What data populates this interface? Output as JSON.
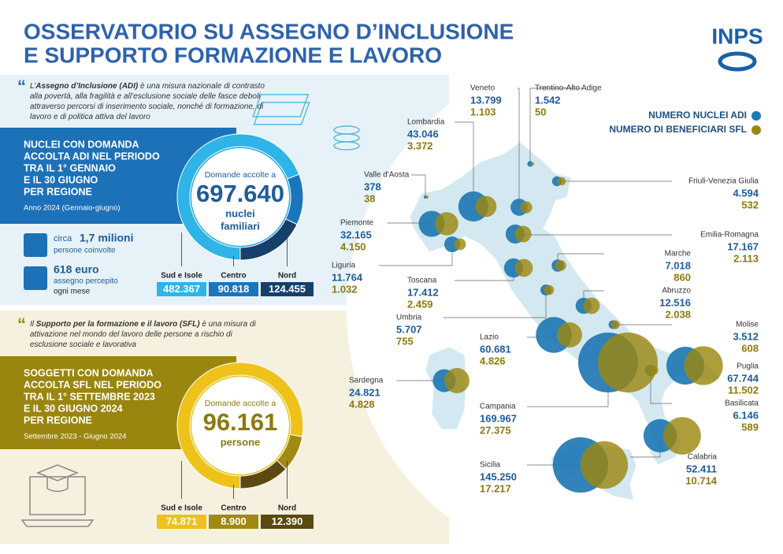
{
  "header": {
    "title": [
      "OSSERVATORIO SU ASSEGNO D’INCLUSIONE",
      "E SUPPORTO FORMAZIONE E LAVORO"
    ],
    "logo": "INPS"
  },
  "adi": {
    "intro": [
      "L’",
      "Assegno d’Inclusione (ADI)",
      " è una misura nazionale di contrasto alla povertà, alla fragilità e all’esclusione sociale delle fasce deboli attraverso percorsi di inserimento sociale, nonché di formazione, di lavoro e di politica attiva del lavoro"
    ],
    "heading": [
      "NUCLEI CON DOMANDA",
      "ACCOLTA ADI NEL PERIODO",
      "TRA IL 1° GENNAIO",
      "E IL 30 GIUGNO",
      "PER REGIONE"
    ],
    "period": "Anno 2024 (Gennaio-giugno)",
    "circle_caption": "Domande accolte a",
    "total": {
      "value": 697640,
      "label": "697.640"
    },
    "unit": [
      "nuclei",
      "familiari"
    ],
    "facts": [
      [
        "circa",
        "1,7 milioni",
        "persone coinvolte"
      ],
      [
        "618 euro",
        "assegno percepito",
        "ogni mese"
      ]
    ],
    "areas": [
      {
        "name": "Sud e Isole",
        "value": 482367,
        "label": "482.367"
      },
      {
        "name": "Centro",
        "value": 90818,
        "label": "90.818"
      },
      {
        "name": "Nord",
        "value": 124455,
        "label": "124.455"
      }
    ]
  },
  "sfl": {
    "intro": [
      "Il ",
      "Supporto per la formazione e il lavoro (SFL)",
      " è una misura di attivazione nel mondo del lavoro delle persone a rischio di esclusione sociale e lavorativa"
    ],
    "heading": [
      "SOGGETTI CON DOMANDA",
      "ACCOLTA SFL NEL PERIODO",
      "TRA IL 1° SETTEMBRE 2023",
      "E IL 30 GIUGNO 2024",
      "PER REGIONE"
    ],
    "period": "Settembre 2023 - Giugno 2024",
    "circle_caption": "Domande accolte a",
    "total": {
      "value": 96161,
      "label": "96.161"
    },
    "unit": [
      "persone"
    ],
    "areas": [
      {
        "name": "Sud e Isole",
        "value": 74871,
        "label": "74.871"
      },
      {
        "name": "Centro",
        "value": 8900,
        "label": "8.900"
      },
      {
        "name": "Nord",
        "value": 12390,
        "label": "12.390"
      }
    ]
  },
  "map": {
    "legend": [
      "NUMERO NUCLEI ADI",
      "NUMERO DI BENEFICIARI SFL"
    ],
    "regions": [
      {
        "name": "Veneto",
        "adi": {
          "value": 13799,
          "label": "13.799"
        },
        "sfl": {
          "value": 1103,
          "label": "1.103"
        }
      },
      {
        "name": "Trentino-Alto Adige",
        "adi": {
          "value": 1542,
          "label": "1.542"
        },
        "sfl": 50
      },
      {
        "name": "Lombardia",
        "adi": {
          "value": 43046,
          "label": "43.046"
        },
        "sfl": {
          "value": 3372,
          "label": "3.372"
        }
      },
      {
        "name": "Friuli-Venezia Giulia",
        "adi": {
          "value": 4594,
          "label": "4.594"
        },
        "sfl": 532
      },
      {
        "name": "Valle d'Aosta",
        "adi": 378,
        "sfl": 38
      },
      {
        "name": "Piemonte",
        "adi": {
          "value": 32165,
          "label": "32.165"
        },
        "sfl": {
          "value": 4150,
          "label": "4.150"
        }
      },
      {
        "name": "Emilia-Romagna",
        "adi": {
          "value": 17167,
          "label": "17.167"
        },
        "sfl": {
          "value": 2113,
          "label": "2.113"
        }
      },
      {
        "name": "Liguria",
        "adi": {
          "value": 11764,
          "label": "11.764"
        },
        "sfl": {
          "value": 1032,
          "label": "1.032"
        }
      },
      {
        "name": "Marche",
        "adi": {
          "value": 7018,
          "label": "7.018"
        },
        "sfl": 860
      },
      {
        "name": "Toscana",
        "adi": {
          "value": 17412,
          "label": "17.412"
        },
        "sfl": {
          "value": 2459,
          "label": "2.459"
        }
      },
      {
        "name": "Abruzzo",
        "adi": {
          "value": 12516,
          "label": "12.516"
        },
        "sfl": {
          "value": 2038,
          "label": "2.038"
        }
      },
      {
        "name": "Umbria",
        "adi": {
          "value": 5707,
          "label": "5.707"
        },
        "sfl": 755
      },
      {
        "name": "Molise",
        "adi": {
          "value": 3512,
          "label": "3.512"
        },
        "sfl": 608
      },
      {
        "name": "Lazio",
        "adi": {
          "value": 60681,
          "label": "60.681"
        },
        "sfl": {
          "value": 4826,
          "label": "4.826"
        }
      },
      {
        "name": "Puglia",
        "adi": {
          "value": 67744,
          "label": "67.744"
        },
        "sfl": {
          "value": 11502,
          "label": "11.502"
        }
      },
      {
        "name": "Sardegna",
        "adi": {
          "value": 24821,
          "label": "24.821"
        },
        "sfl": {
          "value": 4828,
          "label": "4.828"
        }
      },
      {
        "name": "Basilicata",
        "adi": {
          "value": 6146,
          "label": "6.146"
        },
        "sfl": 589
      },
      {
        "name": "Campania",
        "adi": {
          "value": 169967,
          "label": "169.967"
        },
        "sfl": {
          "value": 27375,
          "label": "27.375"
        }
      },
      {
        "name": "Calabria",
        "adi": {
          "value": 52411,
          "label": "52.411"
        },
        "sfl": {
          "value": 10714,
          "label": "10.714"
        }
      },
      {
        "name": "Sicilia",
        "adi": {
          "value": 145250,
          "label": "145.250"
        },
        "sfl": {
          "value": 17217,
          "label": "17.217"
        }
      }
    ]
  }
}
